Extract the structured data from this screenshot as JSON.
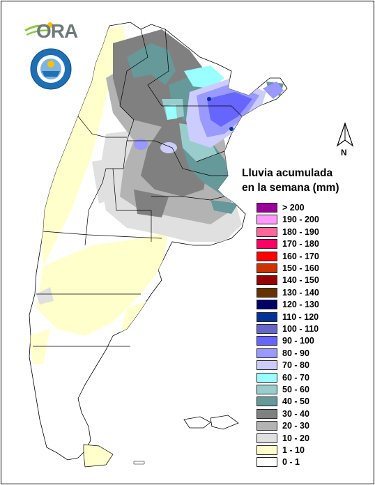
{
  "header": {
    "logo_ora_text": "ORA"
  },
  "legend": {
    "title_line1": "Lluvia acumulada",
    "title_line2": "en la semana (mm)",
    "classes": [
      {
        "label": "> 200",
        "color": "#990099"
      },
      {
        "label": "190 - 200",
        "color": "#ff99ff"
      },
      {
        "label": "180 - 190",
        "color": "#ff6699"
      },
      {
        "label": "170 - 180",
        "color": "#ff0066"
      },
      {
        "label": "160 - 170",
        "color": "#ff0000"
      },
      {
        "label": "150 - 160",
        "color": "#cc3300"
      },
      {
        "label": "140 - 150",
        "color": "#990000"
      },
      {
        "label": "130 - 140",
        "color": "#663300"
      },
      {
        "label": "120 - 130",
        "color": "#000066"
      },
      {
        "label": "110 - 120",
        "color": "#003399"
      },
      {
        "label": "100 - 110",
        "color": "#6666cc"
      },
      {
        "label": "90 - 100",
        "color": "#6666ff"
      },
      {
        "label": "80 - 90",
        "color": "#9999ff"
      },
      {
        "label": "70 - 80",
        "color": "#ccccff"
      },
      {
        "label": "60 - 70",
        "color": "#99ffff"
      },
      {
        "label": "50 - 60",
        "color": "#99cccc"
      },
      {
        "label": "40 - 50",
        "color": "#669999"
      },
      {
        "label": "30 - 40",
        "color": "#808080"
      },
      {
        "label": "20 - 30",
        "color": "#b3b3b3"
      },
      {
        "label": "10 - 20",
        "color": "#e0e0e0"
      },
      {
        "label": "1 - 10",
        "color": "#ffffcc"
      },
      {
        "label": "0 - 1",
        "color": "#ffffff"
      }
    ]
  },
  "north_arrow": {
    "letter": "N"
  },
  "map": {
    "icon": "argentina-rainfall-map"
  }
}
